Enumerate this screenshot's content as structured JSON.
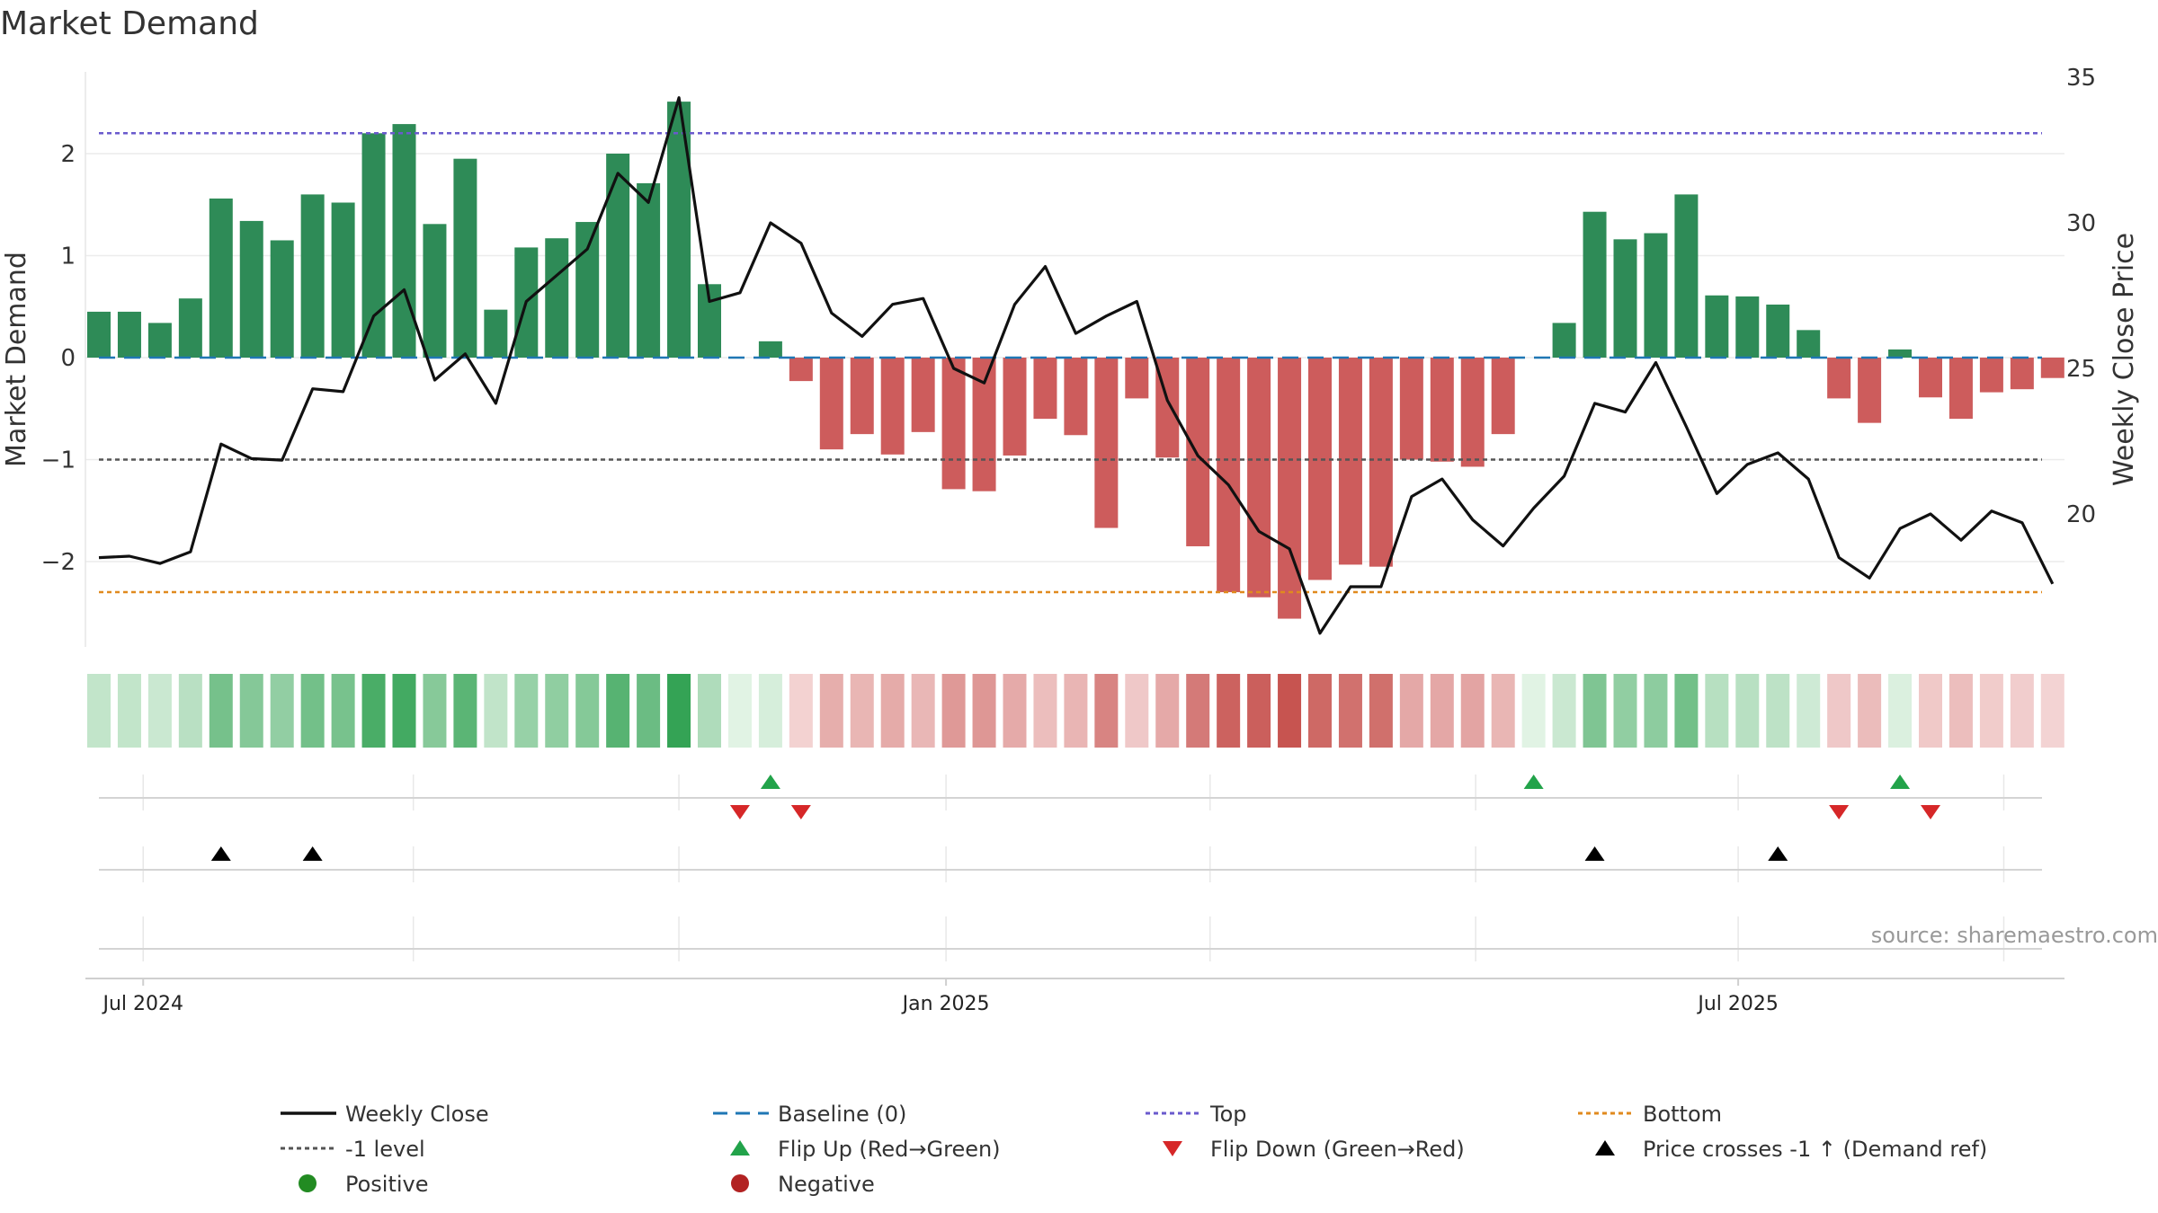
{
  "chart_data": {
    "type": "bar",
    "title": "Market Demand",
    "ylabel": "Market Demand",
    "y2label": "Weekly Close Price",
    "ylim": [
      -2.85,
      2.85
    ],
    "y2lim": [
      15.3,
      35.0
    ],
    "yticks": [
      2,
      1,
      0,
      -1,
      -2
    ],
    "ytick_labels": [
      "2",
      "1",
      "0",
      "−1",
      "−2"
    ],
    "y2ticks": [
      35,
      30,
      25,
      20
    ],
    "y2tick_labels": [
      "35",
      "30",
      "25",
      "20"
    ],
    "xtick_labels": [
      "Jul 2024",
      "Jan 2025",
      "Jul 2025"
    ],
    "xtick_weeks": [
      1.45,
      27.75,
      53.7
    ],
    "top_level": 2.2,
    "bottom_level": -2.3,
    "minus_one_level": -1,
    "baseline": 0,
    "series": [
      {
        "name": "Market Demand",
        "kind": "bar",
        "values": [
          0.45,
          0.45,
          0.34,
          0.58,
          1.56,
          1.34,
          1.15,
          1.6,
          1.52,
          2.2,
          2.29,
          1.31,
          1.95,
          0.47,
          1.08,
          1.17,
          1.33,
          2.0,
          1.71,
          2.51,
          0.72,
          0.0,
          0.16,
          -0.23,
          -0.9,
          -0.75,
          -0.95,
          -0.73,
          -1.29,
          -1.31,
          -0.96,
          -0.6,
          -0.76,
          -1.67,
          -0.4,
          -0.98,
          -1.85,
          -2.3,
          -2.35,
          -2.56,
          -2.18,
          -2.03,
          -2.05,
          -1.0,
          -1.02,
          -1.07,
          -0.75,
          0.0,
          0.34,
          1.43,
          1.16,
          1.22,
          1.6,
          0.61,
          0.6,
          0.52,
          0.27,
          -0.4,
          -0.64,
          0.08,
          -0.39,
          -0.6,
          -0.34,
          -0.31,
          -0.2
        ]
      },
      {
        "name": "Weekly Close",
        "kind": "line",
        "values": [
          18.5,
          18.55,
          18.3,
          18.7,
          22.4,
          21.9,
          21.85,
          24.3,
          24.2,
          26.8,
          27.7,
          24.6,
          25.5,
          23.8,
          27.3,
          28.2,
          29.1,
          31.7,
          30.7,
          34.3,
          27.3,
          27.6,
          30.0,
          29.3,
          26.9,
          26.1,
          27.2,
          27.4,
          25.0,
          24.5,
          27.2,
          28.5,
          26.2,
          26.8,
          27.3,
          23.9,
          22.0,
          21.0,
          19.4,
          18.8,
          15.9,
          17.5,
          17.5,
          20.6,
          21.2,
          19.8,
          18.9,
          20.2,
          21.3,
          23.8,
          23.5,
          25.2,
          23.0,
          20.7,
          21.7,
          22.1,
          21.2,
          18.5,
          17.8,
          19.5,
          20.0,
          19.1,
          20.1,
          19.7,
          17.6
        ]
      }
    ],
    "signals": {
      "flip_up_weeks": [
        22,
        47,
        59
      ],
      "flip_down_weeks": [
        21,
        23,
        57,
        60
      ],
      "price_cross_up_weeks": [
        4,
        7,
        49,
        55
      ]
    },
    "legend": [
      {
        "label": "Weekly Close",
        "style": "line-black"
      },
      {
        "label": "Baseline (0)",
        "style": "dash-blue"
      },
      {
        "label": "Top",
        "style": "dot-purple"
      },
      {
        "label": "Bottom",
        "style": "dot-orange"
      },
      {
        "label": "-1 level",
        "style": "dot-gray"
      },
      {
        "label": "Flip Up (Red→Green)",
        "style": "tri-up-green"
      },
      {
        "label": "Flip Down (Green→Red)",
        "style": "tri-down-red"
      },
      {
        "label": "Price crosses -1 ↑ (Demand ref)",
        "style": "tri-up-black"
      },
      {
        "label": "Positive",
        "style": "dot-green"
      },
      {
        "label": "Negative",
        "style": "dot-red"
      }
    ],
    "source": "source: sharemaestro.com"
  },
  "colors": {
    "bar_positive": "#2e8b57",
    "bar_negative": "#cd5c5c",
    "line": "#111111",
    "baseline": "#1f77b4",
    "top": "#6a5acd",
    "bottom": "#e08a1e",
    "minus_one": "#555555",
    "flip_up": "#22a34a",
    "flip_down": "#d62728",
    "price_cross": "#000000",
    "positive_dot": "#228b22",
    "negative_dot": "#b22222"
  }
}
